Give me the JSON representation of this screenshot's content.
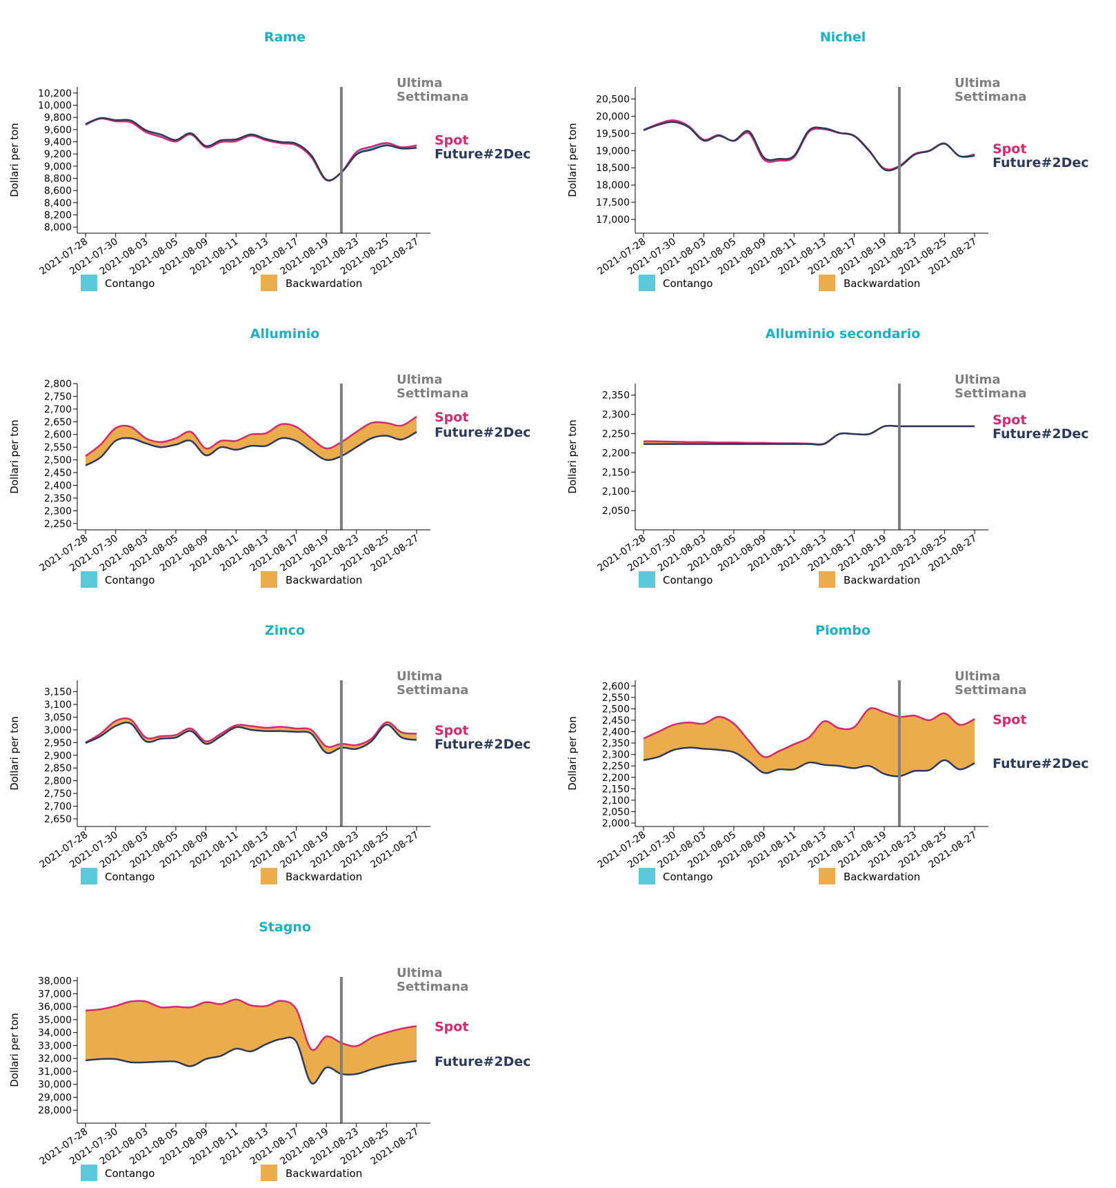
{
  "colors": {
    "title": "#1ab0c6",
    "spot": "#d6286f",
    "future": "#2b3a5c",
    "backwardation": "#ebac4b",
    "contango": "#5bc8dc",
    "marker": "#7f7f7f"
  },
  "common": {
    "ylabel": "Dollari per ton",
    "marker_label_line1": "Ultima",
    "marker_label_line2": "Settimana",
    "marker_date": "2021-08-20",
    "spot_label": "Spot",
    "future_label": "Future#2Dec",
    "legend_contango": "Contango",
    "legend_backwardation": "Backwardation",
    "x_ticks": [
      "2021-07-28",
      "2021-07-30",
      "2021-08-03",
      "2021-08-05",
      "2021-08-09",
      "2021-08-11",
      "2021-08-13",
      "2021-08-17",
      "2021-08-19",
      "2021-08-23",
      "2021-08-25",
      "2021-08-27"
    ]
  },
  "chart_data": [
    {
      "type": "line",
      "title": "Rame",
      "xlabel": "",
      "ylabel": "Dollari per ton",
      "ylim": [
        7900,
        10300
      ],
      "yticks": [
        "8,000",
        "8,200",
        "8,400",
        "8,600",
        "8,800",
        "9,000",
        "9,200",
        "9,400",
        "9,600",
        "9,800",
        "10,000",
        "10,200"
      ],
      "x": [
        "2021-07-28",
        "2021-07-29",
        "2021-07-30",
        "2021-08-02",
        "2021-08-03",
        "2021-08-04",
        "2021-08-05",
        "2021-08-06",
        "2021-08-09",
        "2021-08-10",
        "2021-08-11",
        "2021-08-12",
        "2021-08-13",
        "2021-08-16",
        "2021-08-17",
        "2021-08-18",
        "2021-08-19",
        "2021-08-20",
        "2021-08-23",
        "2021-08-24",
        "2021-08-25",
        "2021-08-26",
        "2021-08-27"
      ],
      "series": [
        {
          "name": "Spot",
          "values": [
            9680,
            9780,
            9735,
            9720,
            9560,
            9480,
            9405,
            9520,
            9310,
            9395,
            9410,
            9500,
            9425,
            9375,
            9345,
            9150,
            8770,
            8900,
            9230,
            9320,
            9380,
            9310,
            9340
          ]
        },
        {
          "name": "Future#2Dec",
          "values": [
            9690,
            9790,
            9755,
            9750,
            9590,
            9520,
            9430,
            9540,
            9330,
            9425,
            9440,
            9520,
            9445,
            9395,
            9370,
            9180,
            8780,
            8895,
            9190,
            9270,
            9340,
            9290,
            9300
          ]
        }
      ]
    },
    {
      "type": "line",
      "title": "Nichel",
      "xlabel": "",
      "ylabel": "Dollari per ton",
      "ylim": [
        16600,
        20850
      ],
      "yticks": [
        "17,000",
        "17,500",
        "18,000",
        "18,500",
        "19,000",
        "19,500",
        "20,000",
        "20,500"
      ],
      "x": [
        "2021-07-28",
        "2021-07-29",
        "2021-07-30",
        "2021-08-02",
        "2021-08-03",
        "2021-08-04",
        "2021-08-05",
        "2021-08-06",
        "2021-08-09",
        "2021-08-10",
        "2021-08-11",
        "2021-08-12",
        "2021-08-13",
        "2021-08-16",
        "2021-08-17",
        "2021-08-18",
        "2021-08-19",
        "2021-08-20",
        "2021-08-23",
        "2021-08-24",
        "2021-08-25",
        "2021-08-26",
        "2021-08-27"
      ],
      "series": [
        {
          "name": "Spot",
          "values": [
            19600,
            19780,
            19880,
            19710,
            19320,
            19450,
            19280,
            19500,
            18740,
            18710,
            18810,
            19550,
            19620,
            19510,
            19420,
            18980,
            18480,
            18550,
            18900,
            19000,
            19210,
            18840,
            18890
          ]
        },
        {
          "name": "Future#2Dec",
          "values": [
            19590,
            19750,
            19830,
            19680,
            19290,
            19430,
            19290,
            19560,
            18800,
            18760,
            18850,
            19590,
            19650,
            19520,
            19430,
            19000,
            18450,
            18530,
            18880,
            18990,
            19200,
            18840,
            18850
          ]
        }
      ]
    },
    {
      "type": "line",
      "title": "Alluminio",
      "xlabel": "",
      "ylabel": "Dollari per ton",
      "ylim": [
        2225,
        2800
      ],
      "yticks": [
        "2,250",
        "2,300",
        "2,350",
        "2,400",
        "2,450",
        "2,500",
        "2,550",
        "2,600",
        "2,650",
        "2,700",
        "2,750",
        "2,800"
      ],
      "x": [
        "2021-07-28",
        "2021-07-29",
        "2021-07-30",
        "2021-08-02",
        "2021-08-03",
        "2021-08-04",
        "2021-08-05",
        "2021-08-06",
        "2021-08-09",
        "2021-08-10",
        "2021-08-11",
        "2021-08-12",
        "2021-08-13",
        "2021-08-16",
        "2021-08-17",
        "2021-08-18",
        "2021-08-19",
        "2021-08-20",
        "2021-08-23",
        "2021-08-24",
        "2021-08-25",
        "2021-08-26",
        "2021-08-27"
      ],
      "series": [
        {
          "name": "Spot",
          "values": [
            2515,
            2560,
            2625,
            2630,
            2585,
            2570,
            2585,
            2610,
            2545,
            2575,
            2575,
            2600,
            2605,
            2640,
            2630,
            2585,
            2545,
            2570,
            2610,
            2645,
            2645,
            2635,
            2670
          ]
        },
        {
          "name": "Future#2Dec",
          "values": [
            2478,
            2510,
            2575,
            2585,
            2565,
            2550,
            2560,
            2575,
            2518,
            2550,
            2540,
            2555,
            2555,
            2585,
            2575,
            2535,
            2500,
            2515,
            2550,
            2585,
            2595,
            2580,
            2610
          ]
        }
      ]
    },
    {
      "type": "line",
      "title": "Alluminio secondario",
      "xlabel": "",
      "ylabel": "Dollari per ton",
      "ylim": [
        2000,
        2380
      ],
      "yticks": [
        "2,050",
        "2,100",
        "2,150",
        "2,200",
        "2,250",
        "2,300",
        "2,350"
      ],
      "x": [
        "2021-07-28",
        "2021-07-29",
        "2021-07-30",
        "2021-08-02",
        "2021-08-03",
        "2021-08-04",
        "2021-08-05",
        "2021-08-06",
        "2021-08-09",
        "2021-08-10",
        "2021-08-11",
        "2021-08-12",
        "2021-08-13",
        "2021-08-16",
        "2021-08-17",
        "2021-08-18",
        "2021-08-19",
        "2021-08-20",
        "2021-08-23",
        "2021-08-24",
        "2021-08-25",
        "2021-08-26",
        "2021-08-27"
      ],
      "series": [
        {
          "name": "Spot",
          "values": [
            2230,
            2230,
            2229,
            2228,
            2228,
            2227,
            2227,
            2226,
            2226,
            2225,
            2225,
            2224,
            2224,
            2249,
            2249,
            2249,
            2269,
            2269,
            2269,
            2269,
            2269,
            2269,
            2269
          ]
        },
        {
          "name": "Future#2Dec",
          "values": [
            2223,
            2223,
            2223,
            2223,
            2223,
            2223,
            2223,
            2223,
            2223,
            2223,
            2223,
            2223,
            2223,
            2249,
            2249,
            2249,
            2269,
            2269,
            2269,
            2269,
            2269,
            2269,
            2269
          ]
        }
      ]
    },
    {
      "type": "line",
      "title": "Zinco",
      "xlabel": "",
      "ylabel": "Dollari per ton",
      "ylim": [
        2620,
        3195
      ],
      "yticks": [
        "2,650",
        "2,700",
        "2,750",
        "2,800",
        "2,850",
        "2,900",
        "2,950",
        "3,000",
        "3,050",
        "3,100",
        "3,150"
      ],
      "x": [
        "2021-07-28",
        "2021-07-29",
        "2021-07-30",
        "2021-08-02",
        "2021-08-03",
        "2021-08-04",
        "2021-08-05",
        "2021-08-06",
        "2021-08-09",
        "2021-08-10",
        "2021-08-11",
        "2021-08-12",
        "2021-08-13",
        "2021-08-16",
        "2021-08-17",
        "2021-08-18",
        "2021-08-19",
        "2021-08-20",
        "2021-08-23",
        "2021-08-24",
        "2021-08-25",
        "2021-08-26",
        "2021-08-27"
      ],
      "series": [
        {
          "name": "Spot",
          "values": [
            2950,
            2985,
            3035,
            3040,
            2970,
            2975,
            2980,
            3005,
            2955,
            2985,
            3018,
            3015,
            3008,
            3012,
            3005,
            3000,
            2935,
            2945,
            2940,
            2965,
            3030,
            2990,
            2985
          ]
        },
        {
          "name": "Future#2Dec",
          "values": [
            2948,
            2975,
            3015,
            3025,
            2955,
            2965,
            2970,
            2995,
            2945,
            2975,
            3010,
            3000,
            2995,
            2995,
            2992,
            2985,
            2910,
            2930,
            2925,
            2955,
            3020,
            2970,
            2960
          ]
        }
      ]
    },
    {
      "type": "line",
      "title": "Piombo",
      "xlabel": "",
      "ylabel": "Dollari per ton",
      "ylim": [
        1985,
        2625
      ],
      "yticks": [
        "2,000",
        "2,050",
        "2,100",
        "2,150",
        "2,200",
        "2,250",
        "2,300",
        "2,350",
        "2,400",
        "2,450",
        "2,500",
        "2,550",
        "2,600"
      ],
      "x": [
        "2021-07-28",
        "2021-07-29",
        "2021-07-30",
        "2021-08-02",
        "2021-08-03",
        "2021-08-04",
        "2021-08-05",
        "2021-08-06",
        "2021-08-09",
        "2021-08-10",
        "2021-08-11",
        "2021-08-12",
        "2021-08-13",
        "2021-08-16",
        "2021-08-17",
        "2021-08-18",
        "2021-08-19",
        "2021-08-20",
        "2021-08-23",
        "2021-08-24",
        "2021-08-25",
        "2021-08-26",
        "2021-08-27"
      ],
      "series": [
        {
          "name": "Spot",
          "values": [
            2370,
            2400,
            2430,
            2440,
            2435,
            2465,
            2435,
            2360,
            2290,
            2315,
            2345,
            2375,
            2445,
            2415,
            2420,
            2500,
            2485,
            2465,
            2470,
            2450,
            2480,
            2430,
            2455
          ]
        },
        {
          "name": "Future#2Dec",
          "values": [
            2275,
            2290,
            2320,
            2330,
            2325,
            2320,
            2310,
            2270,
            2220,
            2235,
            2235,
            2265,
            2255,
            2250,
            2240,
            2250,
            2215,
            2205,
            2228,
            2232,
            2275,
            2235,
            2262
          ]
        }
      ]
    },
    {
      "type": "line",
      "title": "Stagno",
      "xlabel": "",
      "ylabel": "Dollari per ton",
      "ylim": [
        27000,
        38300
      ],
      "yticks": [
        "28,000",
        "29,000",
        "30,000",
        "31,000",
        "32,000",
        "33,000",
        "34,000",
        "35,000",
        "36,000",
        "37,000",
        "38,000"
      ],
      "x": [
        "2021-07-28",
        "2021-07-29",
        "2021-07-30",
        "2021-08-02",
        "2021-08-03",
        "2021-08-04",
        "2021-08-05",
        "2021-08-06",
        "2021-08-09",
        "2021-08-10",
        "2021-08-11",
        "2021-08-12",
        "2021-08-13",
        "2021-08-16",
        "2021-08-17",
        "2021-08-18",
        "2021-08-19",
        "2021-08-20",
        "2021-08-23",
        "2021-08-24",
        "2021-08-25",
        "2021-08-26",
        "2021-08-27"
      ],
      "series": [
        {
          "name": "Spot",
          "values": [
            35700,
            35800,
            36050,
            36400,
            36400,
            35950,
            36000,
            35950,
            36350,
            36200,
            36550,
            36100,
            36050,
            36450,
            35800,
            32700,
            33700,
            33200,
            32950,
            33600,
            34000,
            34300,
            34500
          ]
        },
        {
          "name": "Future#2Dec",
          "values": [
            31850,
            31950,
            31950,
            31700,
            31700,
            31750,
            31750,
            31400,
            31950,
            32200,
            32750,
            32550,
            33100,
            33500,
            33300,
            30100,
            31300,
            30800,
            30800,
            31150,
            31450,
            31650,
            31800
          ]
        }
      ]
    }
  ]
}
